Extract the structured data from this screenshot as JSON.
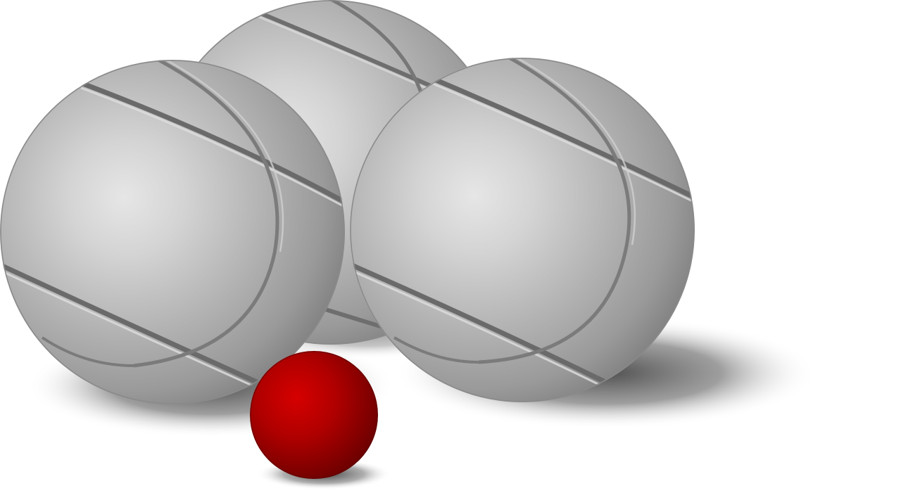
{
  "scene": {
    "subject": "petanque-boules",
    "background_color": "#ffffff",
    "boule_count": 3,
    "jack_count": 1,
    "colors": {
      "boule_highlight": "#e6e6e6",
      "boule_mid": "#b4b4b4",
      "boule_dark": "#7f7f7f",
      "groove_dark": "#6e6e6e",
      "groove_light": "#d8d8d8",
      "jack_highlight": "#d00000",
      "jack_mid": "#a80000",
      "jack_dark": "#6e0000",
      "shadow": "#4a4a4a"
    }
  }
}
